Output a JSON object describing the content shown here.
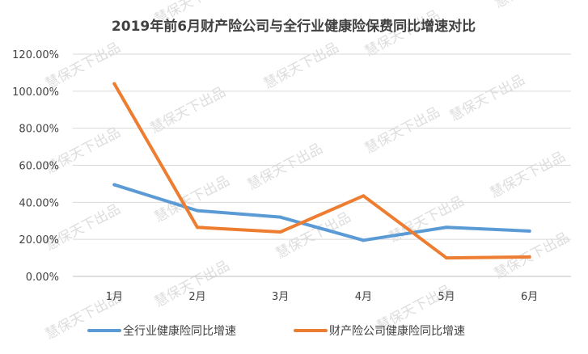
{
  "chart_data": {
    "type": "line",
    "title": "2019年前6月财产险公司与全行业健康险保费同比增速对比",
    "categories": [
      "1月",
      "2月",
      "3月",
      "4月",
      "5月",
      "6月"
    ],
    "series": [
      {
        "name": "全行业健康险同比增速",
        "color": "#5B9BD5",
        "values": [
          49.5,
          35.5,
          32.0,
          19.5,
          26.5,
          24.5
        ]
      },
      {
        "name": "财产险公司健康险同比增速",
        "color": "#ED7D31",
        "values": [
          104.0,
          26.5,
          24.0,
          43.5,
          10.0,
          10.5
        ]
      }
    ],
    "ylim": [
      0,
      120
    ],
    "yticks": [
      "0.00%",
      "20.00%",
      "40.00%",
      "60.00%",
      "80.00%",
      "100.00%",
      "120.00%"
    ],
    "grid": true,
    "legend_position": "bottom"
  },
  "watermark": "慧保天下出品"
}
